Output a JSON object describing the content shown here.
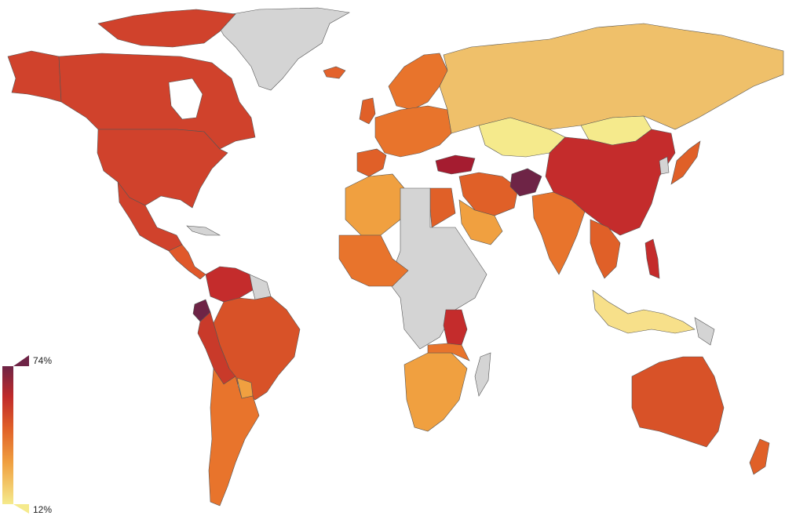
{
  "map": {
    "type": "choropleth-world",
    "no_data_color": "#d4d4d4",
    "border_color": "#555555",
    "water_color": "#ffffff"
  },
  "legend": {
    "max_label": "74%",
    "min_label": "12%",
    "colors": [
      "#f5ea8c",
      "#f0a040",
      "#e06028",
      "#c02a2a",
      "#6e2446"
    ]
  }
}
